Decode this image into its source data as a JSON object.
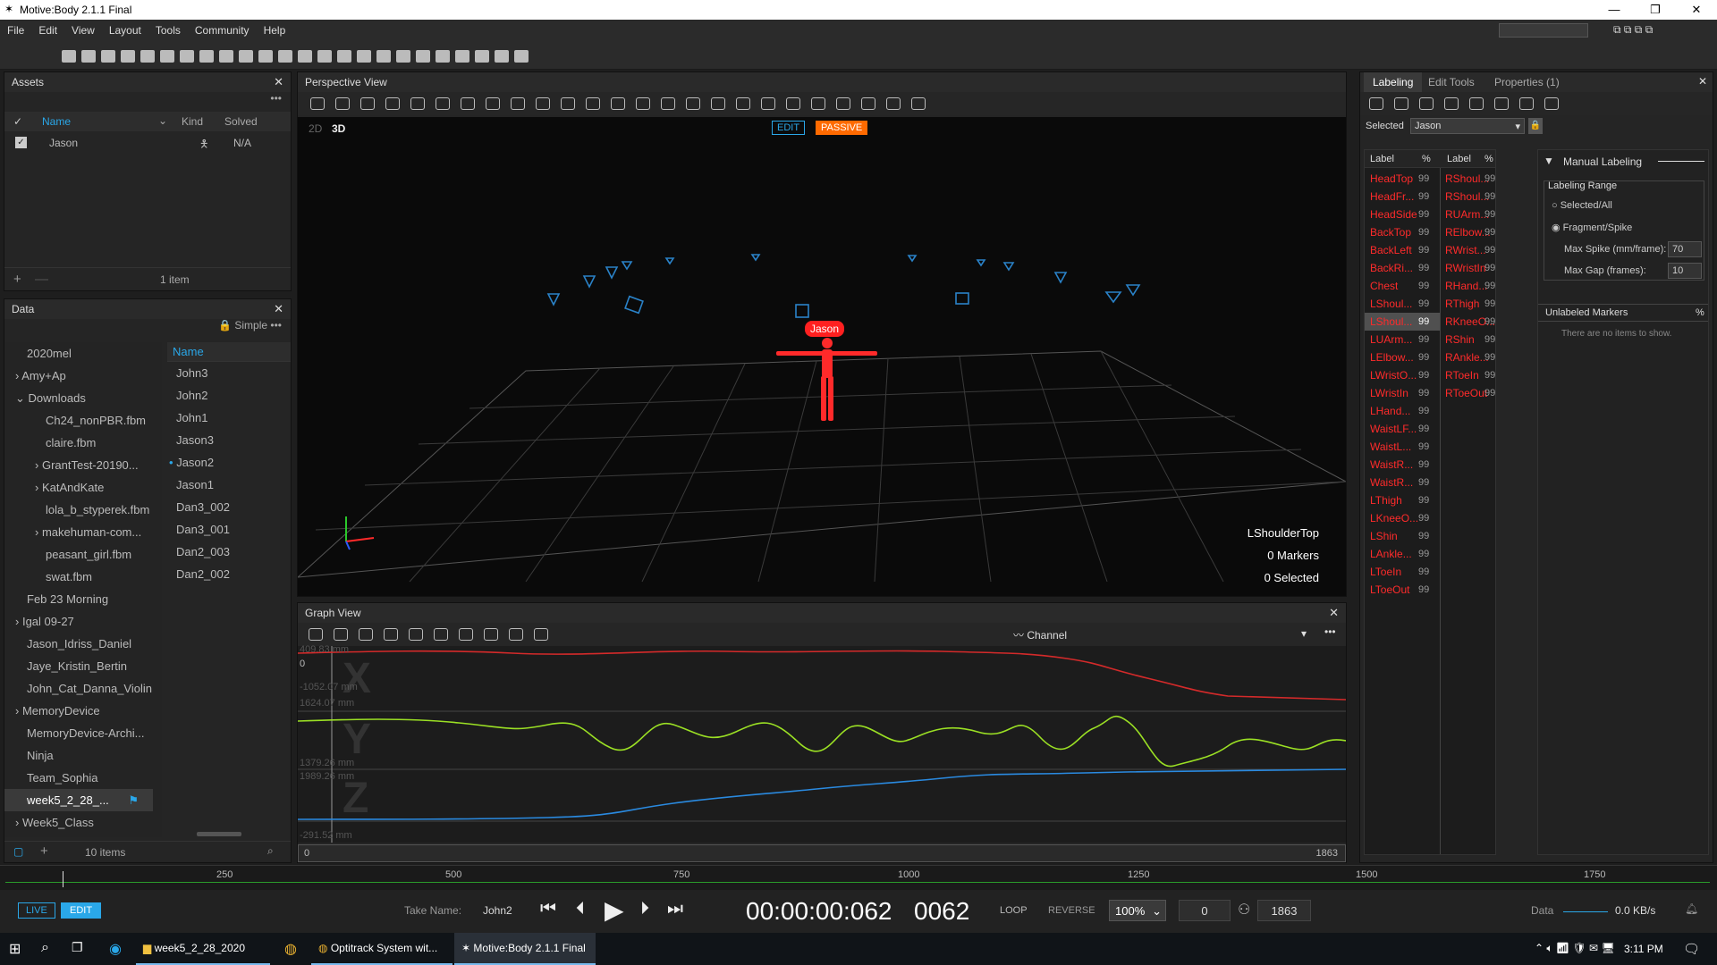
{
  "window": {
    "title": "Motive:Body 2.1.1 Final"
  },
  "menu": [
    "File",
    "Edit",
    "View",
    "Layout",
    "Tools",
    "Community",
    "Help"
  ],
  "assets": {
    "title": "Assets",
    "cols": [
      "Name",
      "Kind",
      "Solved"
    ],
    "row": {
      "name": "Jason",
      "solved": "N/A"
    },
    "footer": "1 item"
  },
  "data_panel": {
    "title": "Data",
    "mode": "Simple",
    "tree": [
      "2020mel",
      "Amy+Ap",
      "Downloads",
      "Ch24_nonPBR.fbm",
      "claire.fbm",
      "GrantTest-20190...",
      "KatAndKate",
      "lola_b_styperek.fbm",
      "makehuman-com...",
      "peasant_girl.fbm",
      "swat.fbm",
      "Feb 23 Morning",
      "Igal 09-27",
      "Jason_Idriss_Daniel",
      "Jaye_Kristin_Bertin",
      "John_Cat_Danna_Violin",
      "MemoryDevice",
      "MemoryDevice-Archi...",
      "Ninja",
      "Team_Sophia",
      "week5_2_28_...",
      "Week5_Class"
    ],
    "name_col": "Name",
    "takes": [
      "John3",
      "John2",
      "John1",
      "Jason3",
      "Jason2",
      "Jason1",
      "Dan3_002",
      "Dan3_001",
      "Dan2_003",
      "Dan2_002"
    ],
    "footer": "10 items"
  },
  "viewport": {
    "title": "Perspective View",
    "tab2d": "2D",
    "tab3d": "3D",
    "edit": "EDIT",
    "passive": "PASSIVE",
    "actor": "Jason",
    "info": [
      "LShoulderTop",
      "0 Markers",
      "0 Selected"
    ]
  },
  "graph": {
    "title": "Graph View",
    "channel": "Channel",
    "labels": [
      "409.83 mm",
      "0",
      "-1052.07 mm",
      "1624.07 mm",
      "1379.26 mm",
      "1989.26 mm",
      "-291.52 mm"
    ],
    "range_start": "0",
    "range_end": "1863"
  },
  "labeling": {
    "tabs": [
      "Labeling",
      "Edit Tools",
      "Properties (1)"
    ],
    "selected_label": "Selected",
    "selected_value": "Jason",
    "col_label": "Label",
    "col_pct": "%",
    "left": [
      "HeadTop",
      "HeadFr...",
      "HeadSide",
      "BackTop",
      "BackLeft",
      "BackRi...",
      "Chest",
      "LShoul...",
      "LShoul...",
      "LUArm...",
      "LElbow...",
      "LWristO...",
      "LWristIn",
      "LHand...",
      "WaistLF...",
      "WaistL...",
      "WaistR...",
      "WaistR...",
      "LThigh",
      "LKneeO...",
      "LShin",
      "LAnkle...",
      "LToeIn",
      "LToeOut"
    ],
    "right": [
      "RShoul...",
      "RShoul...",
      "RUArm...",
      "RElbow...",
      "RWrist...",
      "RWristIn",
      "RHand...",
      "RThigh",
      "RKneeO...",
      "RShin",
      "RAnkle...",
      "RToeIn",
      "RToeOut"
    ],
    "pct": "99",
    "manual": "Manual Labeling",
    "range_title": "Labeling Range",
    "opt1": "Selected/All",
    "opt2": "Fragment/Spike",
    "spike_label": "Max Spike (mm/frame):",
    "spike_val": "70",
    "gap_label": "Max Gap (frames):",
    "gap_val": "10",
    "unlabeled": "Unlabeled Markers",
    "unlabeled_pct": "%",
    "empty": "There are no items to show."
  },
  "timeline": {
    "ticks": [
      "250",
      "500",
      "750",
      "1000",
      "1250",
      "1500",
      "1750"
    ]
  },
  "transport": {
    "live": "LIVE",
    "edit": "EDIT",
    "take_label": "Take Name:",
    "take": "John2",
    "timecode": "00:00:00:062",
    "frame": "0062",
    "loop": "LOOP",
    "reverse": "REVERSE",
    "speed": "100%",
    "start": "0",
    "end": "1863",
    "data_label": "Data",
    "rate": "0.0 KB/s"
  },
  "taskbar": {
    "items": [
      "week5_2_28_2020",
      "Optitrack System wit...",
      "Motive:Body 2.1.1 Final"
    ],
    "time": "3:11 PM"
  }
}
